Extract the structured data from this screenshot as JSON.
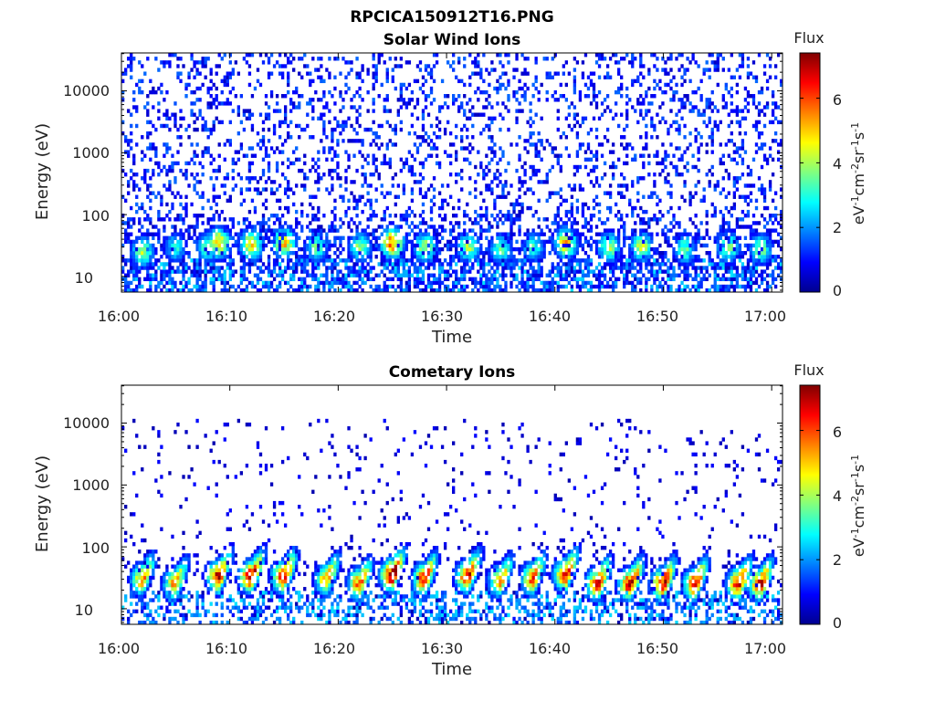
{
  "figure_title": "RPCICA150912T16.PNG",
  "colorbar": {
    "title": "Flux",
    "label_parts": [
      "eV",
      "-1",
      "cm",
      "-2",
      "sr",
      "-1",
      "s",
      "-1"
    ],
    "ticks": [
      "0",
      "2",
      "4",
      "6"
    ],
    "colormap": "jet",
    "colors": [
      "#00008f",
      "#0000ff",
      "#0080ff",
      "#00ffff",
      "#80ff80",
      "#ffff00",
      "#ff8000",
      "#ff0000",
      "#800000"
    ]
  },
  "chart_data": [
    {
      "type": "heatmap",
      "title": "Solar Wind Ions",
      "xlabel": "Time",
      "ylabel": "Energy (eV)",
      "x_ticks": [
        "16:00",
        "16:10",
        "16:20",
        "16:30",
        "16:40",
        "16:50",
        "17:00"
      ],
      "y_ticks": [
        "10",
        "100",
        "1000",
        "10000"
      ],
      "y_scale": "log",
      "xlim": [
        "16:00",
        "17:01"
      ],
      "ylim": [
        5.6,
        41000
      ],
      "zlim": [
        0,
        7.4
      ],
      "bursts": [
        {
          "t": "16:02",
          "e": 25,
          "z": 4.0
        },
        {
          "t": "16:05",
          "e": 30,
          "z": 3.0
        },
        {
          "t": "16:08",
          "e": 30,
          "z": 3.5
        },
        {
          "t": "16:09",
          "e": 35,
          "z": 5.2
        },
        {
          "t": "16:12",
          "e": 33,
          "z": 4.8
        },
        {
          "t": "16:15",
          "e": 35,
          "z": 5.0
        },
        {
          "t": "16:18",
          "e": 30,
          "z": 3.5
        },
        {
          "t": "16:22",
          "e": 30,
          "z": 3.8
        },
        {
          "t": "16:25",
          "e": 35,
          "z": 5.8
        },
        {
          "t": "16:28",
          "e": 30,
          "z": 4.2
        },
        {
          "t": "16:32",
          "e": 30,
          "z": 4.0
        },
        {
          "t": "16:35",
          "e": 28,
          "z": 3.5
        },
        {
          "t": "16:38",
          "e": 30,
          "z": 3.2
        },
        {
          "t": "16:41",
          "e": 35,
          "z": 5.0
        },
        {
          "t": "16:45",
          "e": 30,
          "z": 4.0
        },
        {
          "t": "16:48",
          "e": 30,
          "z": 4.2
        },
        {
          "t": "16:52",
          "e": 28,
          "z": 3.5
        },
        {
          "t": "16:56",
          "e": 30,
          "z": 4.0
        },
        {
          "t": "16:59",
          "e": 28,
          "z": 3.8
        }
      ],
      "background": {
        "max_energy": 41000,
        "level": 1.0,
        "density": "high"
      }
    },
    {
      "type": "heatmap",
      "title": "Cometary Ions",
      "xlabel": "Time",
      "ylabel": "Energy (eV)",
      "x_ticks": [
        "16:00",
        "16:10",
        "16:20",
        "16:30",
        "16:40",
        "16:50",
        "17:00"
      ],
      "y_ticks": [
        "10",
        "100",
        "1000",
        "10000"
      ],
      "y_scale": "log",
      "xlim": [
        "16:00",
        "17:01"
      ],
      "ylim": [
        5.6,
        41000
      ],
      "zlim": [
        0,
        7.4
      ],
      "bursts": [
        {
          "t": "16:02",
          "e": 30,
          "z": 5.5
        },
        {
          "t": "16:05",
          "e": 25,
          "z": 5.5
        },
        {
          "t": "16:09",
          "e": 33,
          "z": 7.0
        },
        {
          "t": "16:12",
          "e": 33,
          "z": 7.0
        },
        {
          "t": "16:15",
          "e": 33,
          "z": 6.8
        },
        {
          "t": "16:19",
          "e": 30,
          "z": 5.5
        },
        {
          "t": "16:22",
          "e": 25,
          "z": 6.0
        },
        {
          "t": "16:25",
          "e": 35,
          "z": 7.2
        },
        {
          "t": "16:28",
          "e": 30,
          "z": 6.5
        },
        {
          "t": "16:32",
          "e": 33,
          "z": 6.8
        },
        {
          "t": "16:35",
          "e": 28,
          "z": 5.5
        },
        {
          "t": "16:38",
          "e": 30,
          "z": 6.0
        },
        {
          "t": "16:41",
          "e": 35,
          "z": 6.8
        },
        {
          "t": "16:44",
          "e": 25,
          "z": 6.5
        },
        {
          "t": "16:47",
          "e": 25,
          "z": 7.0
        },
        {
          "t": "16:50",
          "e": 25,
          "z": 6.8
        },
        {
          "t": "16:53",
          "e": 25,
          "z": 6.5
        },
        {
          "t": "16:57",
          "e": 25,
          "z": 6.8
        },
        {
          "t": "16:59",
          "e": 25,
          "z": 6.5
        }
      ],
      "background": {
        "max_energy": 11000,
        "level": 0.6,
        "density": "low"
      }
    }
  ]
}
